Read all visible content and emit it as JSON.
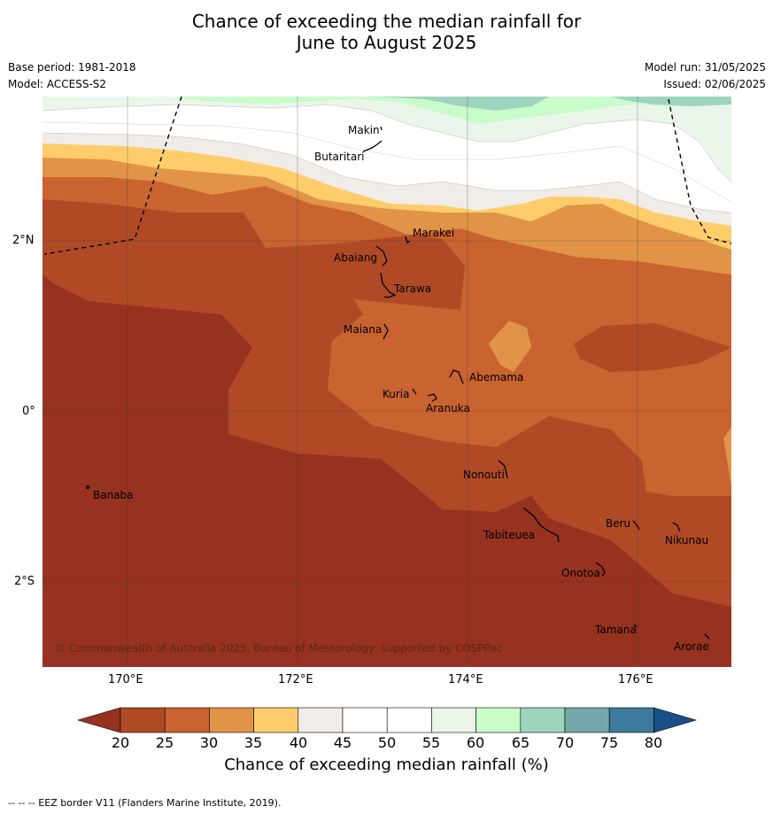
{
  "title_line1": "Chance of exceeding the median rainfall for",
  "title_line2": "June to August 2025",
  "meta": {
    "base_period": "Base period: 1981-2018",
    "model": "Model: ACCESS-S2",
    "model_run": "Model run: 31/05/2025",
    "issued": "Issued: 02/06/2025"
  },
  "axes": {
    "lat_ticks": [
      "2°N",
      "0°",
      "2°S"
    ],
    "lon_ticks": [
      "170°E",
      "172°E",
      "174°E",
      "176°E"
    ]
  },
  "places": {
    "makin": "Makin",
    "butaritari": "Butaritari",
    "marakei": "Marakei",
    "abaiang": "Abaiang",
    "tarawa": "Tarawa",
    "maiana": "Maiana",
    "abemama": "Abemama",
    "kuria": "Kuria",
    "aranuka": "Aranuka",
    "nonouti": "Nonouti",
    "banaba": "Banaba",
    "beru": "Beru",
    "tabiteuea": "Tabiteuea",
    "nikunau": "Nikunau",
    "onotoa": "Onotoa",
    "tamana": "Tamana",
    "arorae": "Arorae"
  },
  "copyright": "© Commonwealth of Australia 2025, Bureau of Meteorology, supported by COSPPac",
  "colorbar": {
    "ticks": [
      "20",
      "25",
      "30",
      "35",
      "40",
      "45",
      "50",
      "55",
      "60",
      "65",
      "70",
      "75",
      "80"
    ],
    "label": "Chance of exceeding median rainfall (%)",
    "colors": {
      "below20": "#96321f",
      "b20_25": "#b04a26",
      "b25_30": "#c96330",
      "b30_35": "#e19447",
      "b35_40": "#fecc6a",
      "b40_45": "#f0ece7",
      "b45_50": "#ffffff",
      "b50_55": "#ffffff",
      "b55_60": "#eaf6e9",
      "b60_65": "#c9fccb",
      "b65_70": "#9ed4bd",
      "b70_75": "#72a8a9",
      "b75_80": "#3d7a9b",
      "above80": "#184f88"
    }
  },
  "footer": "--  --  -- EEZ border V11 (Flanders Marine Institute, 2019)."
}
